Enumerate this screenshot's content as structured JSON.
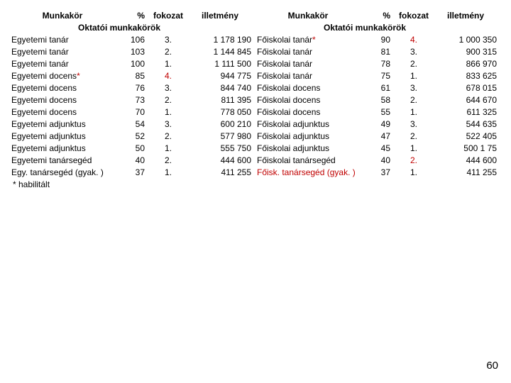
{
  "page_number": "60",
  "footnote": "* habilitált",
  "left": {
    "headers": {
      "c1": "Munkakör",
      "c2": "%",
      "c3": "fokozat",
      "c4": "illetmény"
    },
    "section": "Oktatói munkakörök",
    "rows": [
      {
        "c1": "Egyetemi tanár",
        "c2": "106",
        "c3": "3.",
        "c4": "1 178 190"
      },
      {
        "c1": "Egyetemi tanár",
        "c2": "103",
        "c3": "2.",
        "c4": "1 144 845"
      },
      {
        "c1": "Egyetemi tanár",
        "c2": "100",
        "c3": "1.",
        "c4": "1 111 500"
      },
      {
        "c1": "Egyetemi docens",
        "star": "*",
        "c2": "85",
        "c3": "4.",
        "c3_special": true,
        "c4": "944 775"
      },
      {
        "c1": "Egyetemi docens",
        "c2": "76",
        "c3": "3.",
        "c4": "844 740"
      },
      {
        "c1": "Egyetemi docens",
        "c2": "73",
        "c3": "2.",
        "c4": "811 395"
      },
      {
        "c1": "Egyetemi docens",
        "c2": "70",
        "c3": "1.",
        "c4": "778 050"
      },
      {
        "c1": "Egyetemi adjunktus",
        "c2": "54",
        "c3": "3.",
        "c4": "600 210"
      },
      {
        "c1": "Egyetemi adjunktus",
        "c2": "52",
        "c3": "2.",
        "c4": "577 980"
      },
      {
        "c1": "Egyetemi adjunktus",
        "c2": "50",
        "c3": "1.",
        "c4": "555 750"
      },
      {
        "c1": "Egyetemi tanársegéd",
        "c2": "40",
        "c3": "2.",
        "c4": "444 600"
      },
      {
        "c1": "Egy. tanársegéd (gyak. )",
        "c2": "37",
        "c3": "1.",
        "c4": "411 255"
      }
    ]
  },
  "right": {
    "headers": {
      "c1": "Munkakör",
      "c2": "%",
      "c3": "fokozat",
      "c4": "illetmény"
    },
    "section": "Oktatói munkakörök",
    "rows": [
      {
        "c1": "Főiskolai tanár",
        "star": "*",
        "c2": "90",
        "c3": "4.",
        "c3_special": true,
        "c4": "1 000 350"
      },
      {
        "c1": "Főiskolai tanár",
        "c2": "81",
        "c3": "3.",
        "c4": "900 315"
      },
      {
        "c1": "Főiskolai tanár",
        "c2": "78",
        "c3": "2.",
        "c4": "866 970"
      },
      {
        "c1": "Főiskolai tanár",
        "c2": "75",
        "c3": "1.",
        "c4": "833 625"
      },
      {
        "c1": "Főiskolai docens",
        "c2": "61",
        "c3": "3.",
        "c4": "678 015"
      },
      {
        "c1": "Főiskolai docens",
        "c2": "58",
        "c3": "2.",
        "c4": "644 670"
      },
      {
        "c1": "Főiskolai docens",
        "c2": "55",
        "c3": "1.",
        "c4": "611 325"
      },
      {
        "c1": "Főiskolai adjunktus",
        "c2": "49",
        "c3": "3.",
        "c4": "544 635"
      },
      {
        "c1": "Főiskolai adjunktus",
        "c2": "47",
        "c3": "2.",
        "c4": "522 405"
      },
      {
        "c1": "Főiskolai adjunktus",
        "c2": "45",
        "c3": "1.",
        "c4": "500 1 75"
      },
      {
        "c1": "Főiskolai tanársegéd",
        "c2": "40",
        "c3": "2.",
        "c3_special": true,
        "c4": "444 600"
      },
      {
        "c1": "Főisk. tanársegéd (gyak. )",
        "c1_special": true,
        "c2": "37",
        "c3": "1.",
        "c4": "411 255"
      }
    ]
  }
}
